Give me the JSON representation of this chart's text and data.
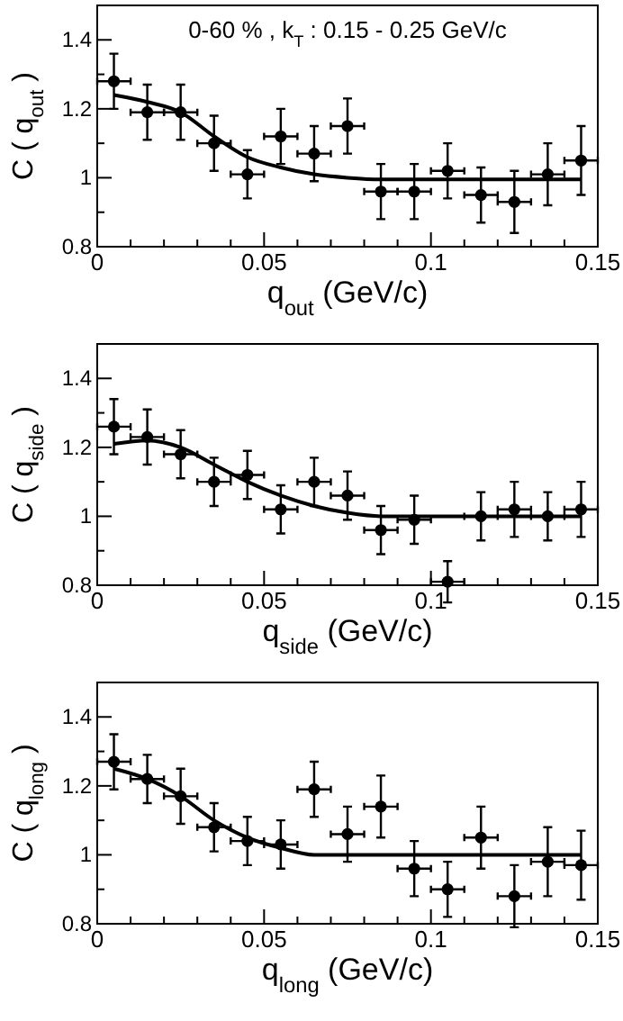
{
  "chart_data": [
    {
      "type": "scatter",
      "xlabel": "q$_{out}$ (GeV/c)",
      "ylabel": "C ( q$_{out}$ )",
      "annotations": [
        "0-60 % , k$_{T}$ : 0.15 - 0.25 GeV/c"
      ],
      "xlim": [
        0,
        0.15
      ],
      "ylim": [
        0.8,
        1.5
      ],
      "xticks": [
        0,
        0.05,
        0.1,
        0.15,
        {
          "value": 0.01,
          "label": null
        },
        {
          "value": 0.02,
          "label": null
        },
        {
          "value": 0.03,
          "label": null
        },
        {
          "value": 0.04,
          "label": null
        },
        {
          "value": 0.06,
          "label": null
        },
        {
          "value": 0.07,
          "label": null
        },
        {
          "value": 0.08,
          "label": null
        },
        {
          "value": 0.09,
          "label": null
        },
        {
          "value": 0.11,
          "label": null
        },
        {
          "value": 0.12,
          "label": null
        },
        {
          "value": 0.13,
          "label": null
        },
        {
          "value": 0.14,
          "label": null
        }
      ],
      "yticks": [
        {
          "value": 0.8,
          "label": "0.8"
        },
        {
          "value": 1,
          "label": "1"
        },
        {
          "value": 1.2,
          "label": "1.2"
        },
        {
          "value": 1.4,
          "label": "1.4"
        },
        {
          "value": 0.9,
          "label": null
        },
        {
          "value": 1.1,
          "label": null
        },
        {
          "value": 1.3,
          "label": null
        }
      ],
      "series": [
        {
          "marker": "circle",
          "color": "#000000",
          "x": [
            0.005,
            0.015,
            0.025,
            0.035,
            0.045,
            0.055,
            0.065,
            0.075,
            0.085,
            0.095,
            0.105,
            0.115,
            0.125,
            0.135,
            0.145
          ],
          "values": [
            1.28,
            1.19,
            1.19,
            1.1,
            1.01,
            1.12,
            1.07,
            1.15,
            0.96,
            0.96,
            1.02,
            0.95,
            0.93,
            1.01,
            1.05
          ],
          "errors": [
            0.08,
            0.08,
            0.08,
            0.08,
            0.07,
            0.08,
            0.08,
            0.08,
            0.08,
            0.08,
            0.08,
            0.08,
            0.09,
            0.09,
            0.1
          ],
          "xerrors": [
            0.005,
            0.005,
            0.005,
            0.005,
            0.005,
            0.005,
            0.005,
            0.005,
            0.005,
            0.005,
            0.005,
            0.005,
            0.005,
            0.005,
            0.005
          ]
        },
        {
          "type": "line",
          "marker": "none",
          "line_style": "solid",
          "color": "#000000",
          "x": [
            0.005,
            0.015,
            0.025,
            0.035,
            0.045,
            0.055,
            0.065,
            0.075,
            0.085,
            0.1,
            0.145
          ],
          "values": [
            1.24,
            1.22,
            1.19,
            1.12,
            1.06,
            1.03,
            1.01,
            1.0,
            0.995,
            0.995,
            0.995
          ]
        }
      ]
    },
    {
      "type": "scatter",
      "xlabel": "q$_{side}$ (GeV/c)",
      "ylabel": "C ( q$_{side}$ )",
      "xlim": [
        0,
        0.15
      ],
      "ylim": [
        0.8,
        1.5
      ],
      "xticks": [
        0,
        0.05,
        0.1,
        0.15,
        {
          "value": 0.01,
          "label": null
        },
        {
          "value": 0.02,
          "label": null
        },
        {
          "value": 0.03,
          "label": null
        },
        {
          "value": 0.04,
          "label": null
        },
        {
          "value": 0.06,
          "label": null
        },
        {
          "value": 0.07,
          "label": null
        },
        {
          "value": 0.08,
          "label": null
        },
        {
          "value": 0.09,
          "label": null
        },
        {
          "value": 0.11,
          "label": null
        },
        {
          "value": 0.12,
          "label": null
        },
        {
          "value": 0.13,
          "label": null
        },
        {
          "value": 0.14,
          "label": null
        }
      ],
      "yticks": [
        {
          "value": 0.8,
          "label": "0.8"
        },
        {
          "value": 1,
          "label": "1"
        },
        {
          "value": 1.2,
          "label": "1.2"
        },
        {
          "value": 1.4,
          "label": "1.4"
        },
        {
          "value": 0.9,
          "label": null
        },
        {
          "value": 1.1,
          "label": null
        },
        {
          "value": 1.3,
          "label": null
        }
      ],
      "series": [
        {
          "marker": "circle",
          "color": "#000000",
          "x": [
            0.005,
            0.015,
            0.025,
            0.035,
            0.045,
            0.055,
            0.065,
            0.075,
            0.085,
            0.095,
            0.105,
            0.115,
            0.125,
            0.135,
            0.145
          ],
          "values": [
            1.26,
            1.23,
            1.18,
            1.1,
            1.12,
            1.02,
            1.1,
            1.06,
            0.96,
            0.99,
            0.81,
            1.0,
            1.02,
            1.0,
            1.02
          ],
          "errors": [
            0.08,
            0.08,
            0.07,
            0.07,
            0.07,
            0.07,
            0.07,
            0.07,
            0.07,
            0.07,
            0.06,
            0.07,
            0.08,
            0.07,
            0.08
          ],
          "xerrors": [
            0.005,
            0.005,
            0.005,
            0.005,
            0.005,
            0.005,
            0.005,
            0.005,
            0.005,
            0.005,
            0.005,
            0.005,
            0.005,
            0.005,
            0.005
          ]
        },
        {
          "type": "line",
          "marker": "none",
          "line_style": "solid",
          "color": "#000000",
          "x": [
            0.005,
            0.015,
            0.025,
            0.035,
            0.045,
            0.055,
            0.065,
            0.075,
            0.085,
            0.1,
            0.145
          ],
          "values": [
            1.21,
            1.22,
            1.2,
            1.15,
            1.1,
            1.06,
            1.03,
            1.01,
            1.0,
            1.0,
            1.0
          ]
        }
      ]
    },
    {
      "type": "scatter",
      "xlabel": "q$_{long}$ (GeV/c)",
      "ylabel": "C ( q$_{long}$ )",
      "xlim": [
        0,
        0.15
      ],
      "ylim": [
        0.8,
        1.5
      ],
      "xticks": [
        0,
        0.05,
        0.1,
        0.15,
        {
          "value": 0.01,
          "label": null
        },
        {
          "value": 0.02,
          "label": null
        },
        {
          "value": 0.03,
          "label": null
        },
        {
          "value": 0.04,
          "label": null
        },
        {
          "value": 0.06,
          "label": null
        },
        {
          "value": 0.07,
          "label": null
        },
        {
          "value": 0.08,
          "label": null
        },
        {
          "value": 0.09,
          "label": null
        },
        {
          "value": 0.11,
          "label": null
        },
        {
          "value": 0.12,
          "label": null
        },
        {
          "value": 0.13,
          "label": null
        },
        {
          "value": 0.14,
          "label": null
        }
      ],
      "yticks": [
        {
          "value": 0.8,
          "label": "0.8"
        },
        {
          "value": 1,
          "label": "1"
        },
        {
          "value": 1.2,
          "label": "1.2"
        },
        {
          "value": 1.4,
          "label": "1.4"
        },
        {
          "value": 0.9,
          "label": null
        },
        {
          "value": 1.1,
          "label": null
        },
        {
          "value": 1.3,
          "label": null
        }
      ],
      "series": [
        {
          "marker": "circle",
          "color": "#000000",
          "x": [
            0.005,
            0.015,
            0.025,
            0.035,
            0.045,
            0.055,
            0.065,
            0.075,
            0.085,
            0.095,
            0.105,
            0.115,
            0.125,
            0.135,
            0.145
          ],
          "values": [
            1.27,
            1.22,
            1.17,
            1.08,
            1.04,
            1.03,
            1.19,
            1.06,
            1.14,
            0.96,
            0.9,
            1.05,
            0.88,
            0.98,
            0.97
          ],
          "errors": [
            0.08,
            0.07,
            0.08,
            0.07,
            0.07,
            0.07,
            0.08,
            0.08,
            0.09,
            0.08,
            0.08,
            0.09,
            0.09,
            0.1,
            0.1
          ],
          "xerrors": [
            0.005,
            0.005,
            0.005,
            0.005,
            0.005,
            0.005,
            0.005,
            0.005,
            0.005,
            0.005,
            0.005,
            0.005,
            0.005,
            0.005,
            0.005
          ]
        },
        {
          "type": "line",
          "marker": "none",
          "line_style": "solid",
          "color": "#000000",
          "x": [
            0.005,
            0.015,
            0.025,
            0.035,
            0.045,
            0.055,
            0.065,
            0.075,
            0.1,
            0.145
          ],
          "values": [
            1.25,
            1.22,
            1.17,
            1.1,
            1.05,
            1.02,
            1.0,
            1.0,
            1.0,
            1.0
          ]
        }
      ]
    }
  ]
}
